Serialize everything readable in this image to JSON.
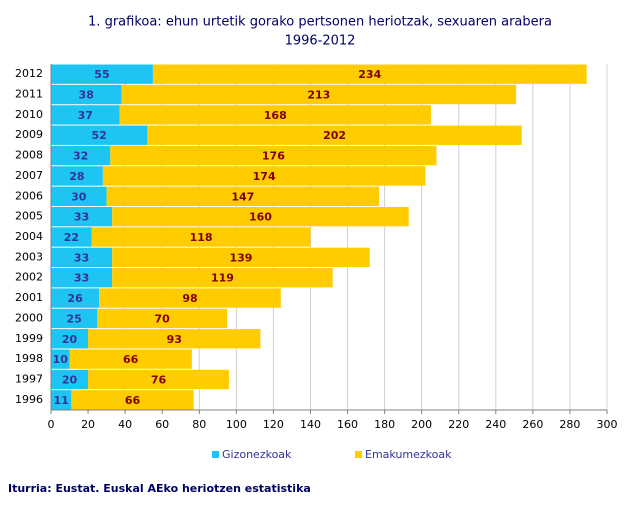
{
  "chart_data": {
    "type": "stacked-bar-horizontal",
    "title": "1. grafikoa: ehun urtetik gorako pertsonen heriotzak, sexuaren arabera",
    "subtitle": "1996-2012",
    "categories": [
      "2012",
      "2011",
      "2010",
      "2009",
      "2008",
      "2007",
      "2006",
      "2005",
      "2004",
      "2003",
      "2002",
      "2001",
      "2000",
      "1999",
      "1998",
      "1997",
      "1996"
    ],
    "series": [
      {
        "name": "Gizonezkoak",
        "color": "#1ec4f4",
        "values": [
          55,
          38,
          37,
          52,
          32,
          28,
          30,
          33,
          22,
          33,
          33,
          26,
          25,
          20,
          10,
          20,
          11
        ]
      },
      {
        "name": "Emakumezkoak",
        "color": "#ffcc00",
        "values": [
          234,
          213,
          168,
          202,
          176,
          174,
          147,
          160,
          118,
          139,
          119,
          98,
          70,
          93,
          66,
          76,
          66
        ]
      }
    ],
    "xlim": [
      0,
      300
    ],
    "xticks": [
      0,
      20,
      40,
      60,
      80,
      100,
      120,
      140,
      160,
      180,
      200,
      220,
      240,
      260,
      280,
      300
    ],
    "grid": true,
    "legend": "bottom",
    "source": "Iturria: Eustat. Euskal AEko heriotzen estatistika"
  }
}
